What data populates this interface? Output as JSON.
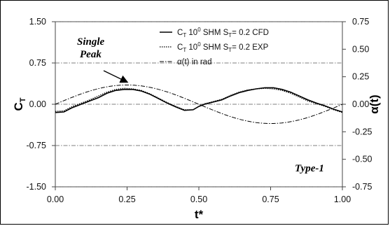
{
  "chart_data": {
    "type": "line",
    "xlabel": "t*",
    "ylabel_left": "C",
    "ylabel_left_sub": "T",
    "ylabel_right": "α(t)",
    "xlim": [
      0,
      1
    ],
    "ylim_left": [
      -1.5,
      1.5
    ],
    "ylim_right": [
      -0.75,
      0.75
    ],
    "x_ticks": [
      "0.00",
      "0.25",
      "0.50",
      "0.75",
      "1.00"
    ],
    "y_left_ticks": [
      "1.50",
      "0.75",
      "0.00",
      "-0.75",
      "-1.50"
    ],
    "y_right_ticks": [
      "0.75",
      "0.50",
      "0.25",
      "0.00",
      "-0.25",
      "-0.50",
      "-0.75"
    ],
    "grid": "horizontal-dash-dot",
    "legend_position": "top-right",
    "series": [
      {
        "legend_prefix": "C",
        "legend_sub": "T",
        "legend_mid": " 10",
        "legend_sup": "0",
        "legend_suffix": " SHM S",
        "legend_sub2": "T",
        "legend_end": "= 0.2 CFD",
        "style": "solid",
        "axis": "left",
        "x": [
          0.0,
          0.03,
          0.06,
          0.09,
          0.12,
          0.15,
          0.18,
          0.21,
          0.24,
          0.27,
          0.3,
          0.33,
          0.36,
          0.39,
          0.42,
          0.45,
          0.48,
          0.5,
          0.52,
          0.55,
          0.58,
          0.61,
          0.64,
          0.67,
          0.7,
          0.73,
          0.76,
          0.79,
          0.82,
          0.85,
          0.88,
          0.91,
          0.94,
          0.97,
          1.0
        ],
        "y": [
          -0.15,
          -0.14,
          -0.06,
          0.0,
          0.06,
          0.12,
          0.2,
          0.25,
          0.27,
          0.27,
          0.24,
          0.18,
          0.1,
          0.02,
          -0.05,
          -0.11,
          -0.1,
          -0.04,
          0.0,
          0.04,
          0.08,
          0.15,
          0.21,
          0.25,
          0.28,
          0.3,
          0.3,
          0.27,
          0.22,
          0.15,
          0.08,
          0.02,
          -0.03,
          -0.09,
          -0.14
        ]
      },
      {
        "legend_prefix": "C",
        "legend_sub": "T",
        "legend_mid": " 10",
        "legend_sup": "0",
        "legend_suffix": " SHM S",
        "legend_sub2": "T",
        "legend_end": "= 0.2 EXP",
        "style": "dotted",
        "axis": "left",
        "x": [
          0.0,
          0.03,
          0.06,
          0.09,
          0.12,
          0.15,
          0.18,
          0.21,
          0.24,
          0.27,
          0.3,
          0.33,
          0.36,
          0.39,
          0.42,
          0.45,
          0.48,
          0.5,
          0.52,
          0.55,
          0.58,
          0.61,
          0.64,
          0.67,
          0.7,
          0.73,
          0.76,
          0.79,
          0.82,
          0.85,
          0.88,
          0.91,
          0.94,
          0.97,
          1.0
        ],
        "y": [
          -0.13,
          -0.12,
          -0.04,
          0.02,
          0.08,
          0.15,
          0.22,
          0.27,
          0.29,
          0.28,
          0.25,
          0.19,
          0.11,
          0.03,
          -0.04,
          -0.1,
          -0.1,
          -0.04,
          0.01,
          0.05,
          0.09,
          0.16,
          0.22,
          0.26,
          0.28,
          0.29,
          0.28,
          0.25,
          0.2,
          0.13,
          0.06,
          0.01,
          -0.04,
          -0.1,
          -0.15
        ]
      },
      {
        "legend_text": "α(t) in  rad",
        "style": "dash-dot",
        "axis": "right",
        "function": "0.175*sin(2*pi*t)"
      }
    ],
    "annotations": {
      "single_peak_line1": "Single",
      "single_peak_line2": "Peak",
      "type_label": "Type-1"
    }
  }
}
